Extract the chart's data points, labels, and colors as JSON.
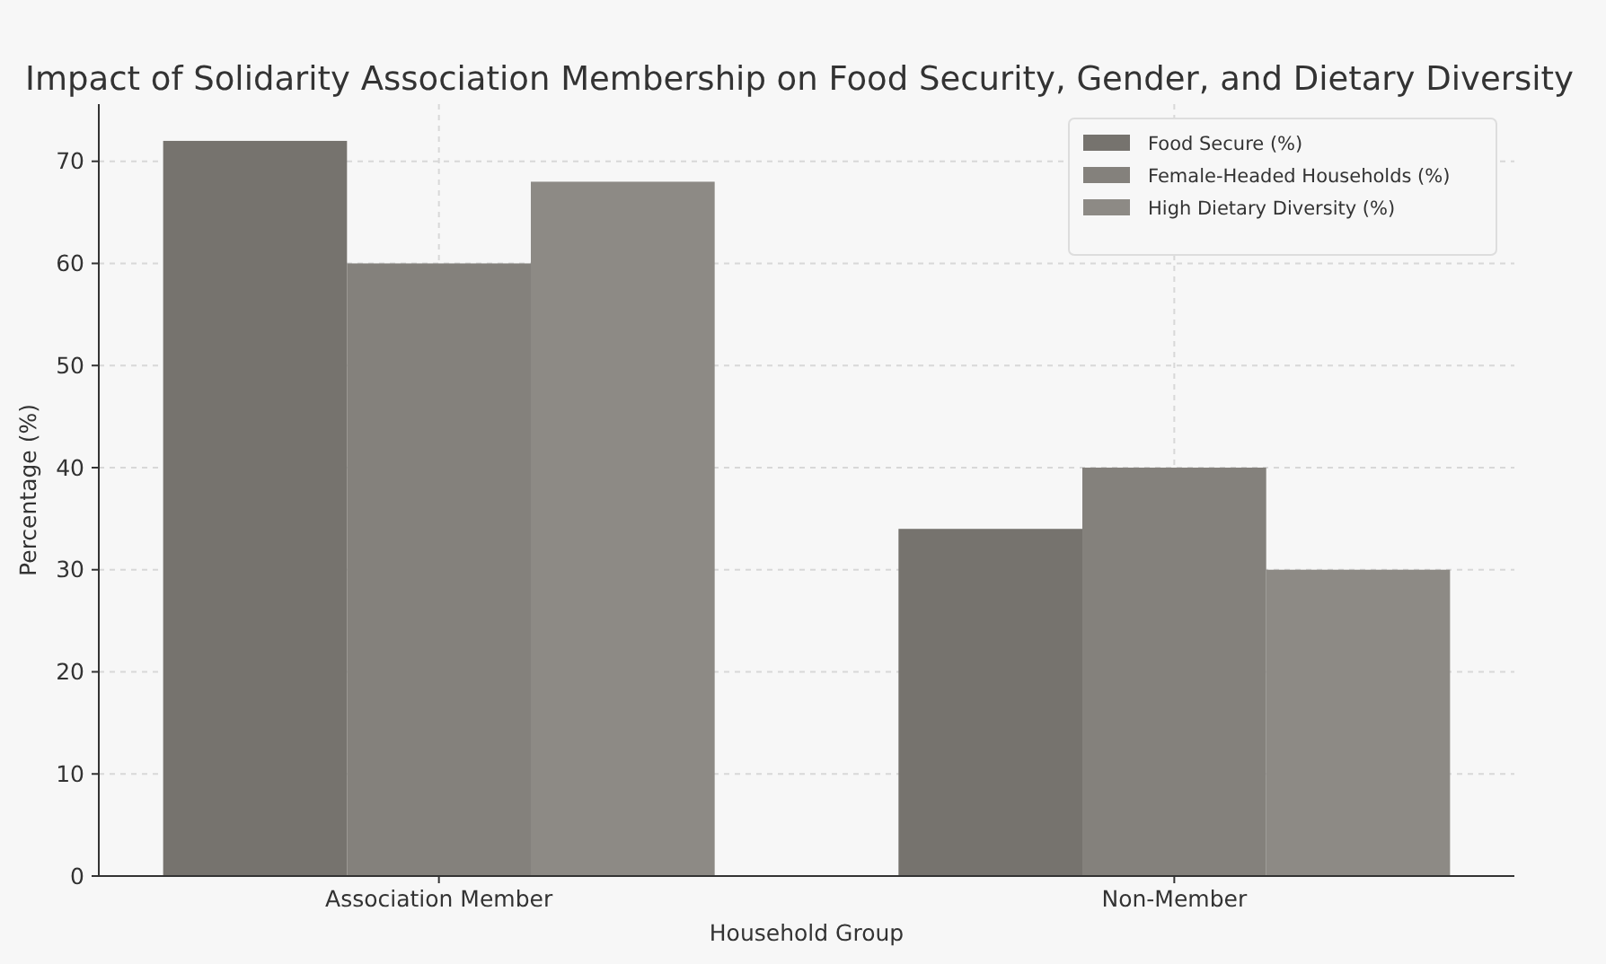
{
  "chart_data": {
    "type": "bar",
    "title": "Impact of Solidarity Association Membership on Food Security, Gender, and Dietary Diversity",
    "xlabel": "Household Group",
    "ylabel": "Percentage (%)",
    "categories": [
      "Association Member",
      "Non-Member"
    ],
    "series": [
      {
        "name": "Food Secure (%)",
        "color": "#76736e",
        "values": [
          72,
          34
        ]
      },
      {
        "name": "Female-Headed Households (%)",
        "color": "#84817c",
        "values": [
          60,
          40
        ]
      },
      {
        "name": "High Dietary Diversity (%)",
        "color": "#8d8a85",
        "values": [
          68,
          30
        ]
      }
    ],
    "ylim": [
      0,
      75.6
    ],
    "yticks": [
      0,
      10,
      20,
      30,
      40,
      50,
      60,
      70
    ],
    "grid": true,
    "legend": "top right"
  }
}
